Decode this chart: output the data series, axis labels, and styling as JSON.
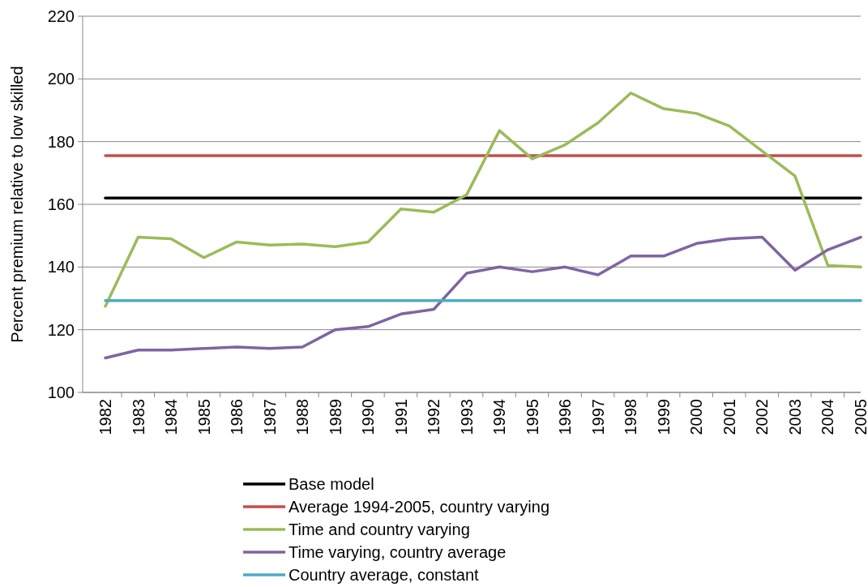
{
  "chart_data": {
    "type": "line",
    "ylabel": "Percent premium relative to low skilled",
    "categories": [
      "1982",
      "1983",
      "1984",
      "1985",
      "1986",
      "1987",
      "1988",
      "1989",
      "1990",
      "1991",
      "1992",
      "1993",
      "1994",
      "1995",
      "1996",
      "1997",
      "1998",
      "1999",
      "2000",
      "2001",
      "2002",
      "2003",
      "2004",
      "2005"
    ],
    "ylim": [
      100,
      220
    ],
    "yticks": [
      100,
      120,
      140,
      160,
      180,
      200,
      220
    ],
    "grid": "y",
    "legend": "bottom",
    "marker": "none",
    "line_style": "solid",
    "series": [
      {
        "name": "Base model",
        "color": "#000000",
        "values": [
          162,
          162,
          162,
          162,
          162,
          162,
          162,
          162,
          162,
          162,
          162,
          162,
          162,
          162,
          162,
          162,
          162,
          162,
          162,
          162,
          162,
          162,
          162,
          162
        ]
      },
      {
        "name": "Average 1994-2005,  country varying",
        "color": "#c0504d",
        "values": [
          175.5,
          175.5,
          175.5,
          175.5,
          175.5,
          175.5,
          175.5,
          175.5,
          175.5,
          175.5,
          175.5,
          175.5,
          175.5,
          175.5,
          175.5,
          175.5,
          175.5,
          175.5,
          175.5,
          175.5,
          175.5,
          175.5,
          175.5,
          175.5
        ]
      },
      {
        "name": "Time and country varying",
        "color": "#9bbb59",
        "values": [
          127.5,
          149.5,
          149,
          143,
          148,
          147,
          147.3,
          146.5,
          148,
          158.5,
          157.5,
          163,
          183.5,
          174.5,
          179,
          186,
          195.5,
          190.5,
          189,
          185,
          177,
          169,
          140.5,
          140
        ]
      },
      {
        "name": "Time varying, country average",
        "color": "#8064a2",
        "values": [
          111,
          113.5,
          113.5,
          114,
          114.5,
          114,
          114.5,
          120,
          121,
          125,
          126.5,
          138,
          140,
          138.5,
          140,
          137.5,
          143.5,
          143.5,
          147.5,
          149,
          149.5,
          139,
          145.5,
          149.5
        ]
      },
      {
        "name": "Country average, constant",
        "color": "#4bacc6",
        "values": [
          129.3,
          129.3,
          129.3,
          129.3,
          129.3,
          129.3,
          129.3,
          129.3,
          129.3,
          129.3,
          129.3,
          129.3,
          129.3,
          129.3,
          129.3,
          129.3,
          129.3,
          129.3,
          129.3,
          129.3,
          129.3,
          129.3,
          129.3,
          129.3
        ]
      }
    ]
  }
}
